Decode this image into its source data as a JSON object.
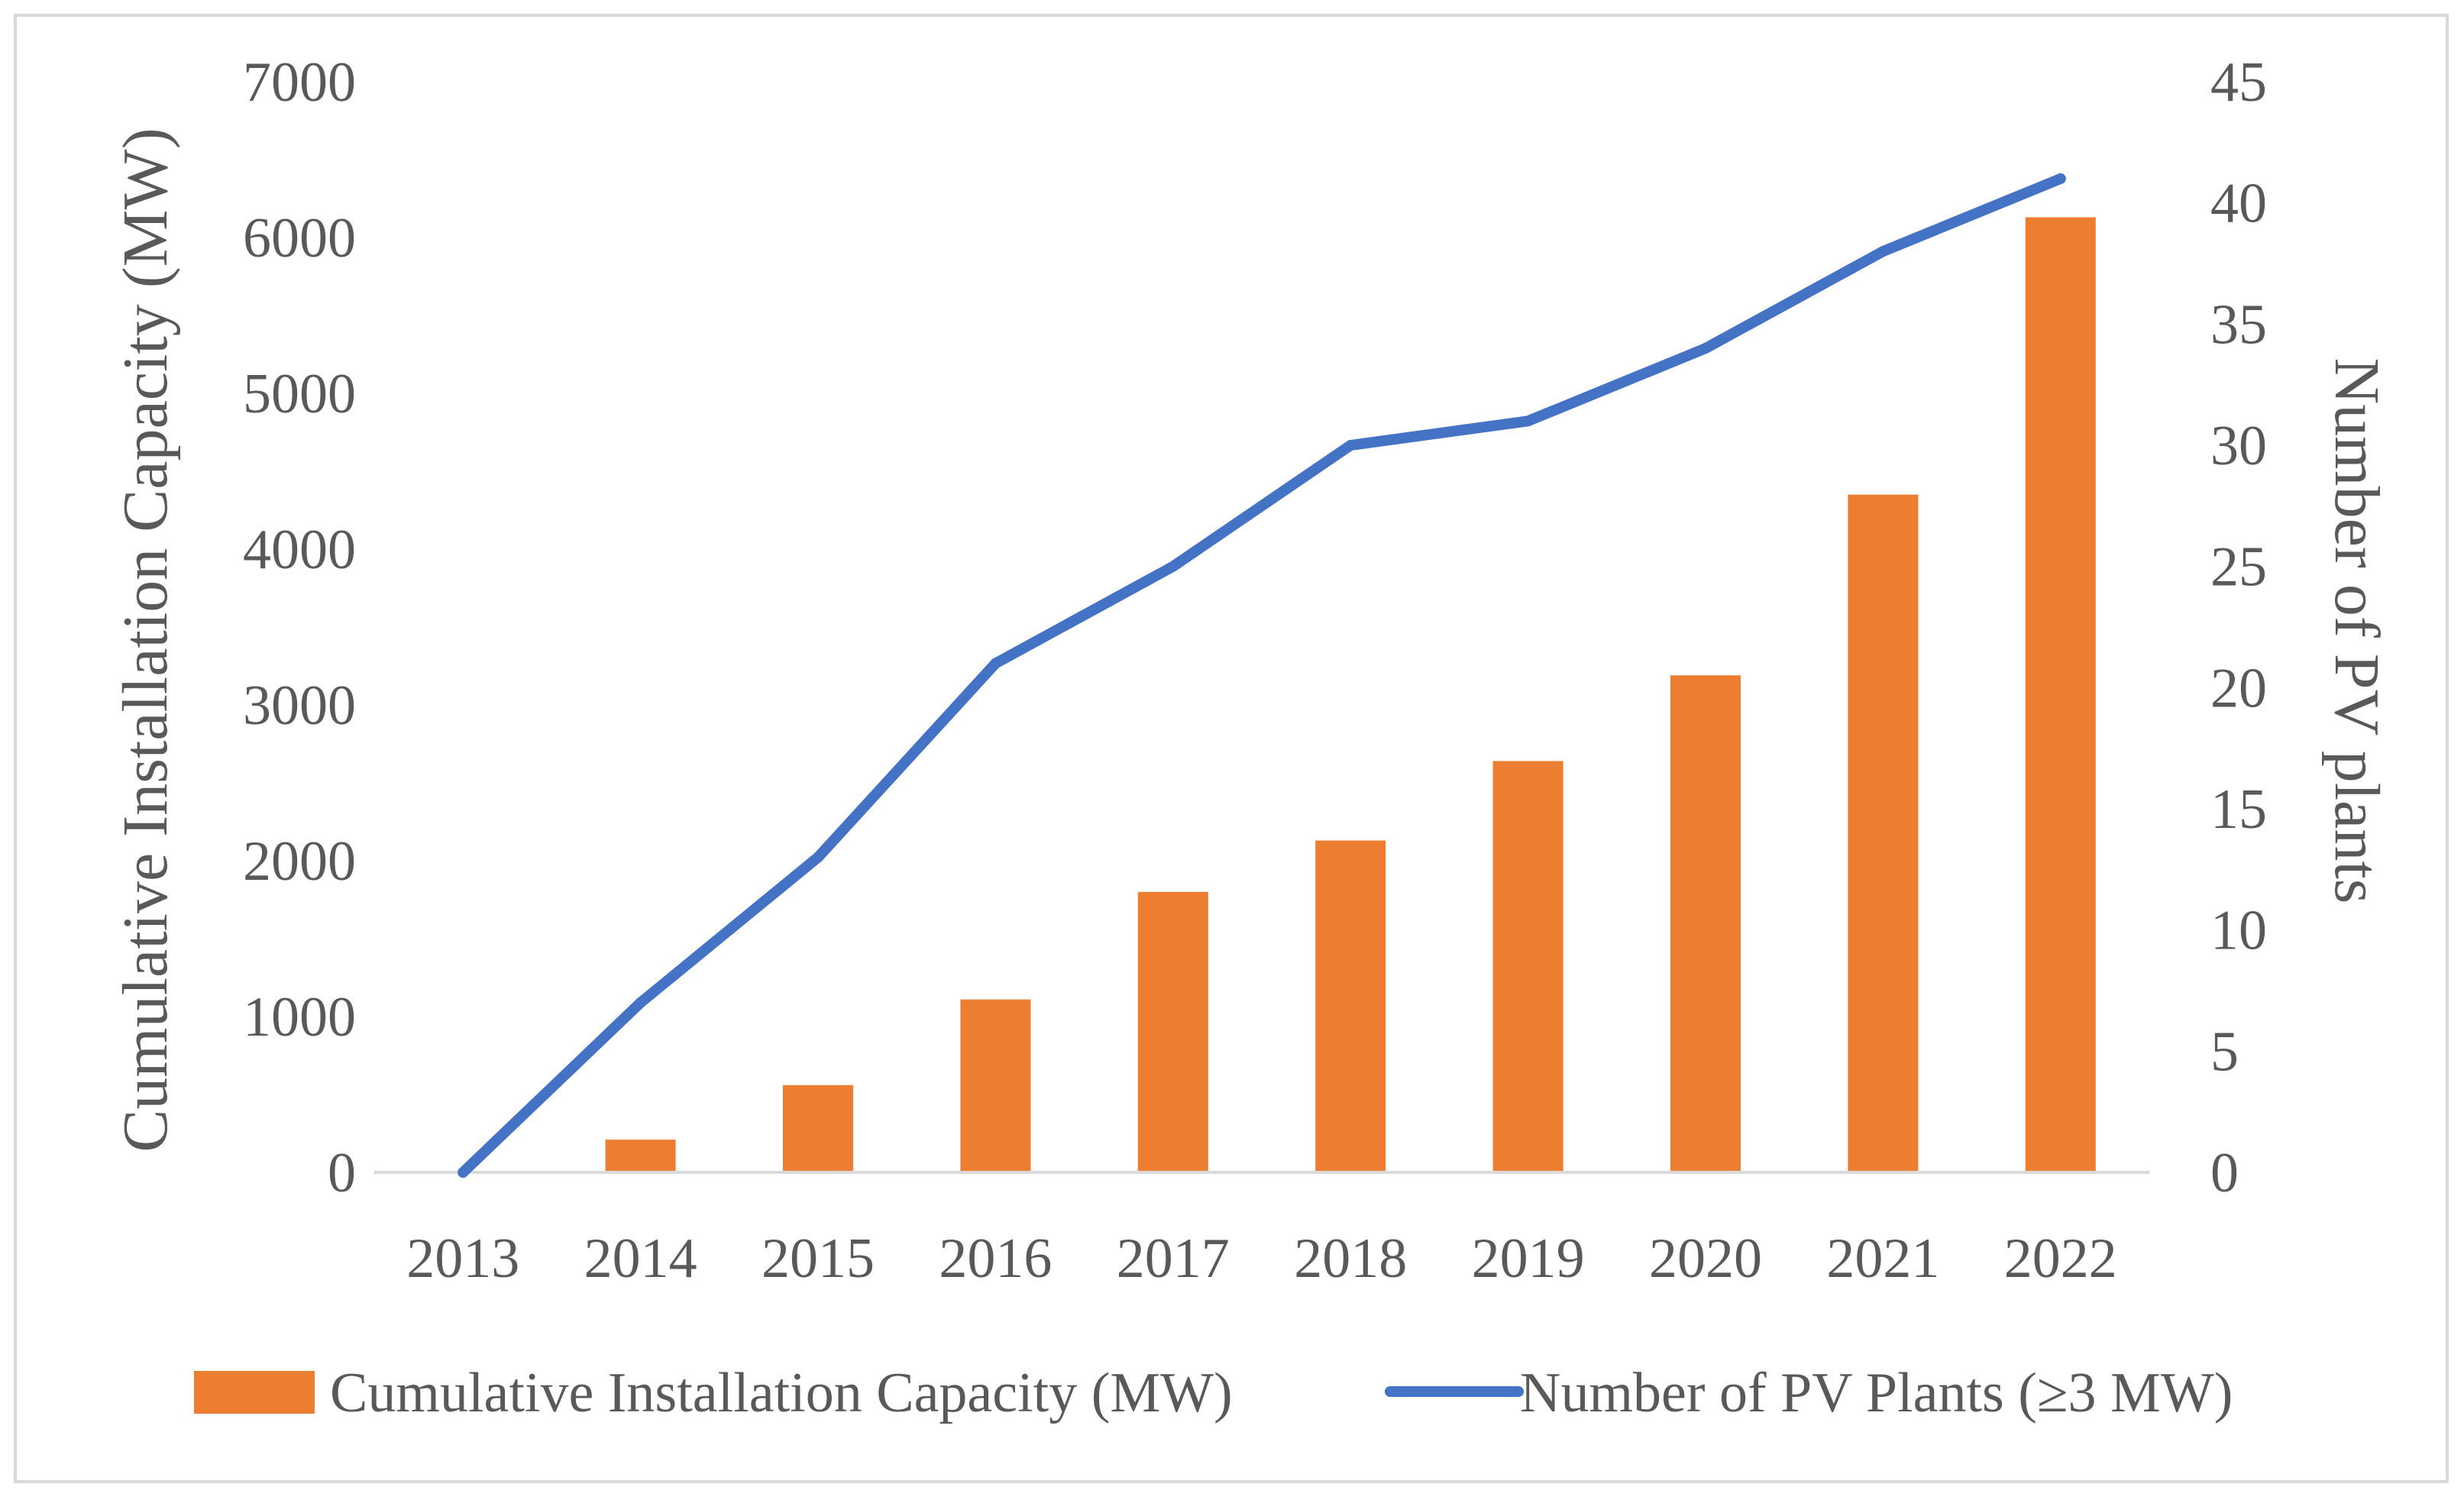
{
  "chart_data": {
    "type": "bar+line",
    "categories": [
      "2013",
      "2014",
      "2015",
      "2016",
      "2017",
      "2018",
      "2019",
      "2020",
      "2021",
      "2022"
    ],
    "series": [
      {
        "name": "Cumulative Installation Capacity (MW)",
        "type": "bar",
        "axis": "left",
        "color": "#ED7D31",
        "values": [
          0,
          210,
          560,
          1110,
          1800,
          2130,
          2640,
          3190,
          4350,
          6130
        ]
      },
      {
        "name": "Number of PV Plants (≥3 MW)",
        "type": "line",
        "axis": "right",
        "color": "#4472C4",
        "values": [
          0,
          7,
          13,
          21,
          25,
          30,
          31,
          34,
          38,
          41
        ]
      }
    ],
    "ylabel": "Cumulative Installation Capacity (MW)",
    "ylabel_right": "Number of PV plants",
    "xlabel": "",
    "ylim": [
      0,
      7000
    ],
    "ylim_right": [
      0,
      45
    ],
    "yticks": [
      "0",
      "1000",
      "2000",
      "3000",
      "4000",
      "5000",
      "6000",
      "7000"
    ],
    "yticks_right": [
      "0",
      "5",
      "10",
      "15",
      "20",
      "25",
      "30",
      "35",
      "40",
      "45"
    ],
    "grid": false,
    "legend_position": "bottom"
  }
}
